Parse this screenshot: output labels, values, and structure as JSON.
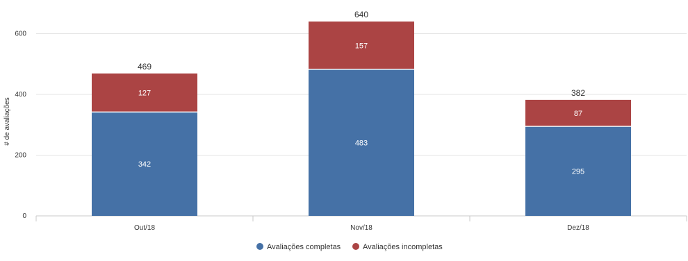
{
  "chart_data": {
    "type": "bar",
    "stacked": true,
    "categories": [
      "Out/18",
      "Nov/18",
      "Dez/18"
    ],
    "series": [
      {
        "name": "Avaliações completas",
        "values": [
          342,
          483,
          295
        ],
        "color": "#4571a6"
      },
      {
        "name": "Avaliações incompletas",
        "values": [
          127,
          157,
          87
        ],
        "color": "#ab4444"
      }
    ],
    "totals": [
      469,
      640,
      382
    ],
    "title": "",
    "xlabel": "",
    "ylabel": "# de avaliações",
    "ylim": [
      0,
      640
    ],
    "yticks": [
      0,
      200,
      400,
      600
    ],
    "grid": true,
    "legend_position": "bottom-center"
  }
}
